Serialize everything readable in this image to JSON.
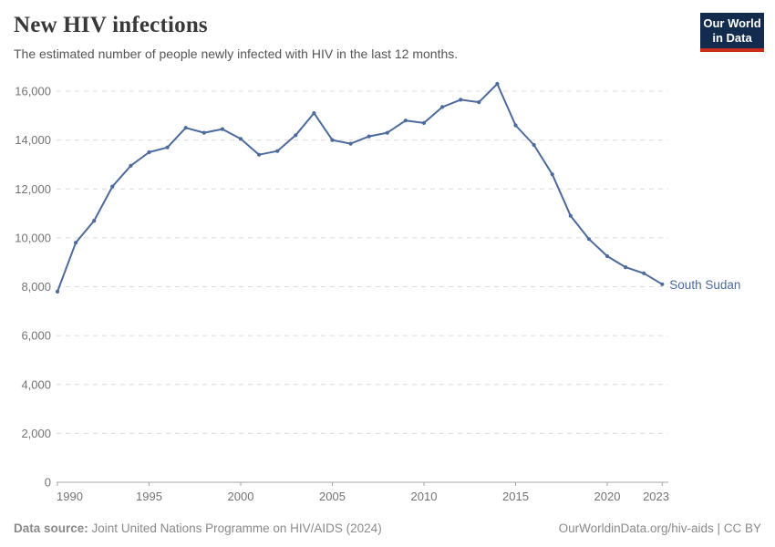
{
  "header": {
    "title": "New HIV infections",
    "subtitle": "The estimated number of people newly infected with HIV in the last 12 months."
  },
  "logo": {
    "line1": "Our World",
    "line2": "in Data"
  },
  "chart_data": {
    "type": "line",
    "title": "New HIV infections",
    "xlabel": "",
    "ylabel": "",
    "x": [
      1990,
      1991,
      1992,
      1993,
      1994,
      1995,
      1996,
      1997,
      1998,
      1999,
      2000,
      2001,
      2002,
      2003,
      2004,
      2005,
      2006,
      2007,
      2008,
      2009,
      2010,
      2011,
      2012,
      2013,
      2014,
      2015,
      2016,
      2017,
      2018,
      2019,
      2020,
      2021,
      2022,
      2023
    ],
    "series": [
      {
        "name": "South Sudan",
        "values": [
          7800,
          9800,
          10700,
          12100,
          12950,
          13500,
          13700,
          14500,
          14300,
          14450,
          14050,
          13400,
          13550,
          14200,
          15100,
          14000,
          13850,
          14150,
          14300,
          14800,
          14700,
          15350,
          15650,
          15550,
          16300,
          14600,
          13800,
          12600,
          10900,
          9950,
          9250,
          8800,
          8550,
          8100
        ]
      }
    ],
    "ylim": [
      0,
      16000
    ],
    "yticks": [
      0,
      2000,
      4000,
      6000,
      8000,
      10000,
      12000,
      14000,
      16000
    ],
    "ytick_labels": [
      "0",
      "2,000",
      "4,000",
      "6,000",
      "8,000",
      "10,000",
      "12,000",
      "14,000",
      "16,000"
    ],
    "xticks": [
      1990,
      1995,
      2000,
      2005,
      2010,
      2015,
      2020,
      2023
    ],
    "grid": "horizontal-dashed",
    "legend": "end-of-line-label"
  },
  "colors": {
    "series": "#4c6a9c",
    "grid": "#dcdcdc",
    "axis": "#a6a6a6",
    "tick_label": "#737373",
    "logo_navy": "#132c4d",
    "logo_red": "#cb2d1d"
  },
  "footer": {
    "source_label": "Data source:",
    "source_text": "Joint United Nations Programme on HIV/AIDS (2024)",
    "right_text": "OurWorldinData.org/hiv-aids | CC BY"
  }
}
